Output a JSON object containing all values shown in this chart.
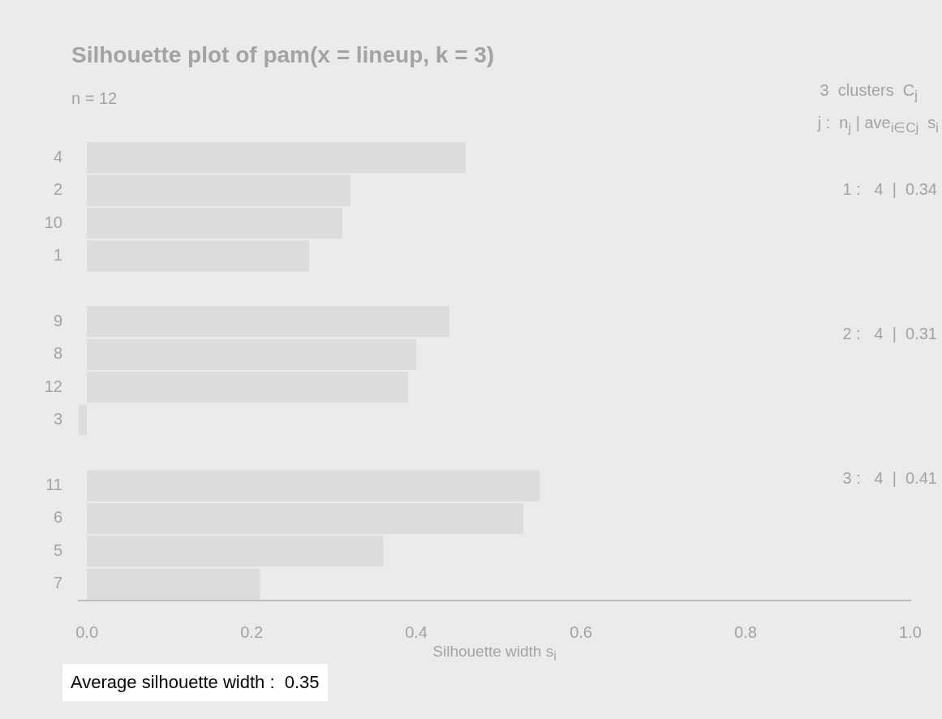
{
  "chart_data": {
    "type": "bar",
    "orientation": "horizontal",
    "title": "Silhouette plot of pam(x = lineup, k = 3)",
    "subtitle": "n = 12",
    "xlabel": "Silhouette width s$_{i}$",
    "categories": [
      "4",
      "2",
      "10",
      "1",
      null,
      "9",
      "8",
      "12",
      "3",
      null,
      "11",
      "6",
      "5",
      "7"
    ],
    "values": [
      0.46,
      0.32,
      0.31,
      0.27,
      null,
      0.44,
      0.4,
      0.39,
      -0.01,
      null,
      0.55,
      0.53,
      0.36,
      0.21
    ],
    "color": "#dcdcdc",
    "xlim": [
      -0.01,
      1
    ],
    "xticks": [
      {
        "value": 0,
        "label": "0.0"
      },
      {
        "value": 0.2,
        "label": "0.2"
      },
      {
        "value": 0.4,
        "label": "0.4"
      },
      {
        "value": 0.6,
        "label": "0.6"
      },
      {
        "value": 0.8,
        "label": "0.8"
      },
      {
        "value": 1,
        "label": "1.0"
      }
    ],
    "grid": false,
    "legend": false,
    "annotations": [
      "3  clusters  C$_{j}$",
      "j :  n$_{j}$ | ave$_{i∈Cj}$  s$_{i}$",
      "1 :   4  |  0.34",
      "2 :   4  |  0.31",
      "3 :   4  |  0.41",
      "Average silhouette width :  0.35"
    ]
  }
}
